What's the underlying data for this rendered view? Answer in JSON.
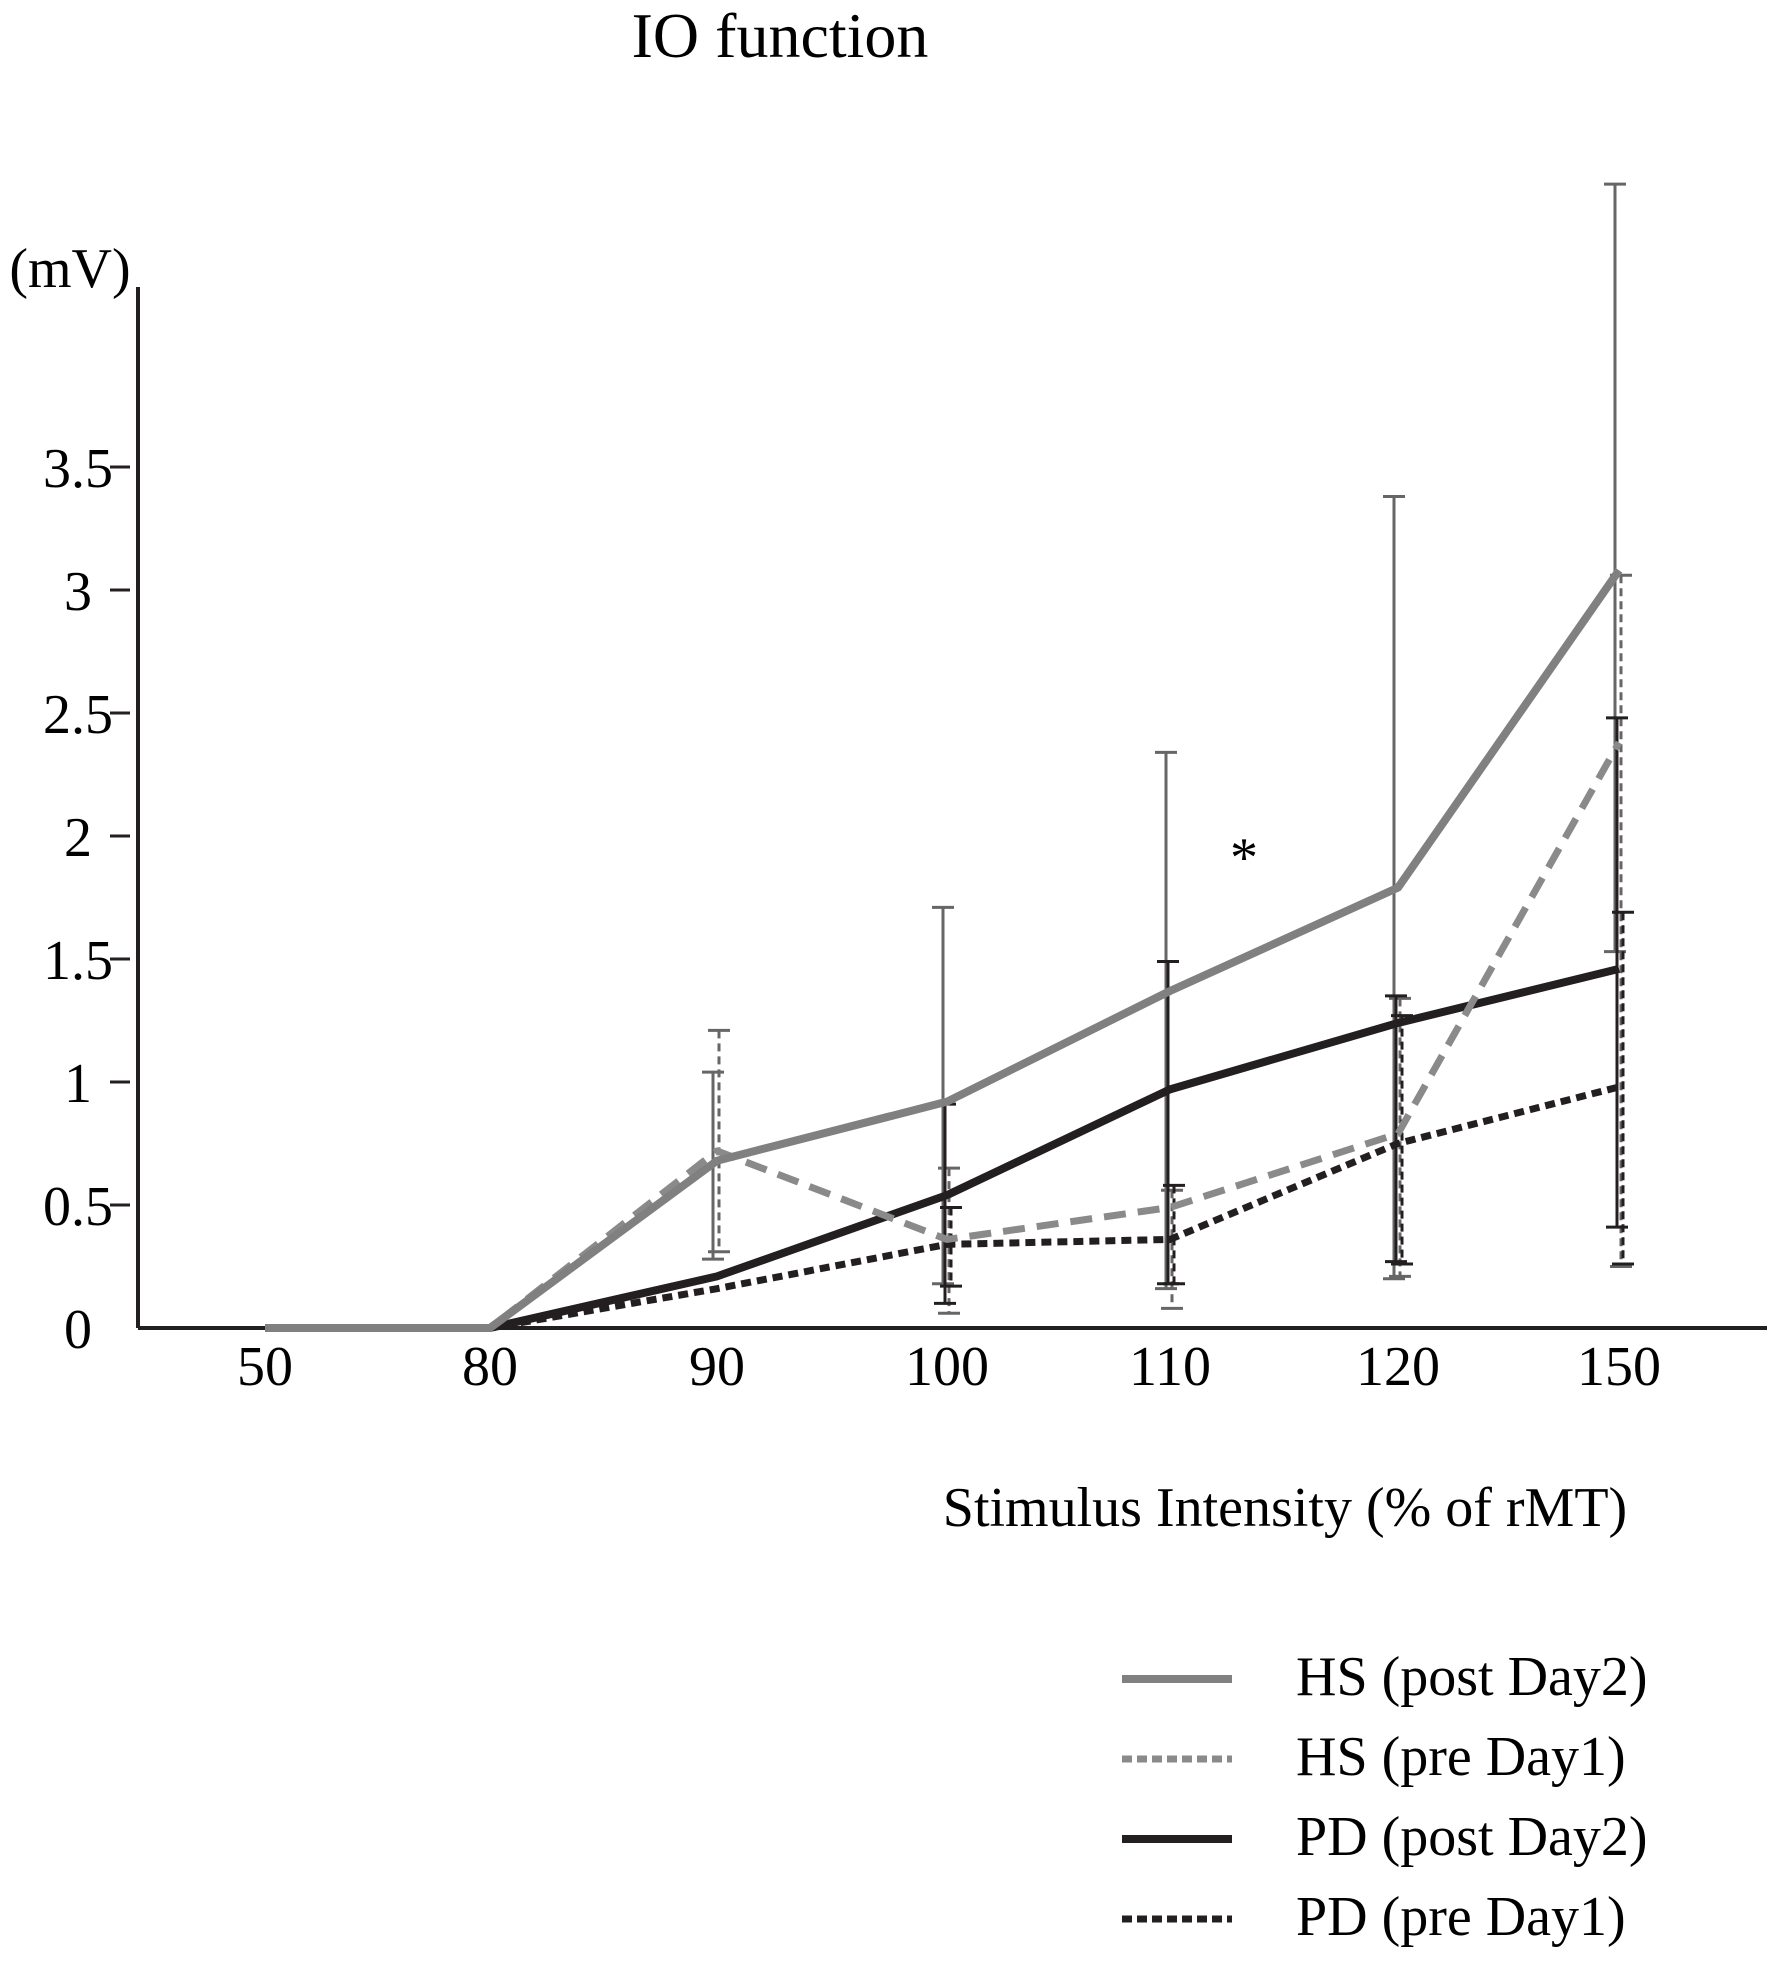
{
  "chart_data": {
    "type": "line",
    "title": "IO function",
    "xlabel": "Stimulus Intensity (% of rMT)",
    "ylabel": "(mV)",
    "categories": [
      "50",
      "80",
      "90",
      "100",
      "110",
      "120",
      "150"
    ],
    "yticks": [
      "0",
      "0.5",
      "1",
      "1.5",
      "2",
      "2.5",
      "3",
      "3.5"
    ],
    "ytick_values": [
      0,
      0.5,
      1,
      1.5,
      2,
      2.5,
      3,
      3.5
    ],
    "ylim": [
      0,
      4.2
    ],
    "grid": false,
    "legend_position": "bottom-right",
    "annotation": {
      "text": "*",
      "x_between": [
        "110",
        "120"
      ],
      "y": 2.0
    },
    "series": [
      {
        "name": "HS (post Day2)",
        "color": "#808080",
        "style": "solid",
        "width": 8,
        "values": [
          0,
          0,
          0.68,
          0.92,
          1.37,
          1.79,
          3.08
        ],
        "err_low": [
          null,
          null,
          0.28,
          0.18,
          0.16,
          0.2,
          1.53
        ],
        "err_high": [
          null,
          null,
          1.04,
          1.71,
          2.34,
          3.38,
          4.65
        ]
      },
      {
        "name": "HS (pre Day1)",
        "color": "#8a8a8a",
        "style": "dashed",
        "width": 7,
        "values": [
          0,
          0,
          0.72,
          0.36,
          0.49,
          0.79,
          2.38
        ],
        "err_low": [
          null,
          null,
          0.31,
          0.06,
          0.08,
          0.21,
          0.25
        ],
        "err_high": [
          null,
          null,
          1.21,
          0.65,
          0.56,
          1.34,
          3.06
        ]
      },
      {
        "name": "PD (post Day2)",
        "color": "#231f20",
        "style": "solid",
        "width": 8,
        "values": [
          0,
          0,
          0.21,
          0.54,
          0.97,
          1.24,
          1.46
        ],
        "err_low": [
          null,
          null,
          null,
          0.1,
          0.18,
          0.27,
          0.41
        ],
        "err_high": [
          null,
          null,
          null,
          0.91,
          1.49,
          1.35,
          2.48
        ]
      },
      {
        "name": "PD (pre Day1)",
        "color": "#231f20",
        "style": "dotted",
        "width": 7,
        "values": [
          0,
          0,
          0.16,
          0.34,
          0.36,
          0.75,
          0.98
        ],
        "err_low": [
          null,
          null,
          null,
          0.17,
          0.18,
          0.26,
          0.26
        ],
        "err_high": [
          null,
          null,
          null,
          0.49,
          0.58,
          1.27,
          1.69
        ]
      }
    ]
  }
}
